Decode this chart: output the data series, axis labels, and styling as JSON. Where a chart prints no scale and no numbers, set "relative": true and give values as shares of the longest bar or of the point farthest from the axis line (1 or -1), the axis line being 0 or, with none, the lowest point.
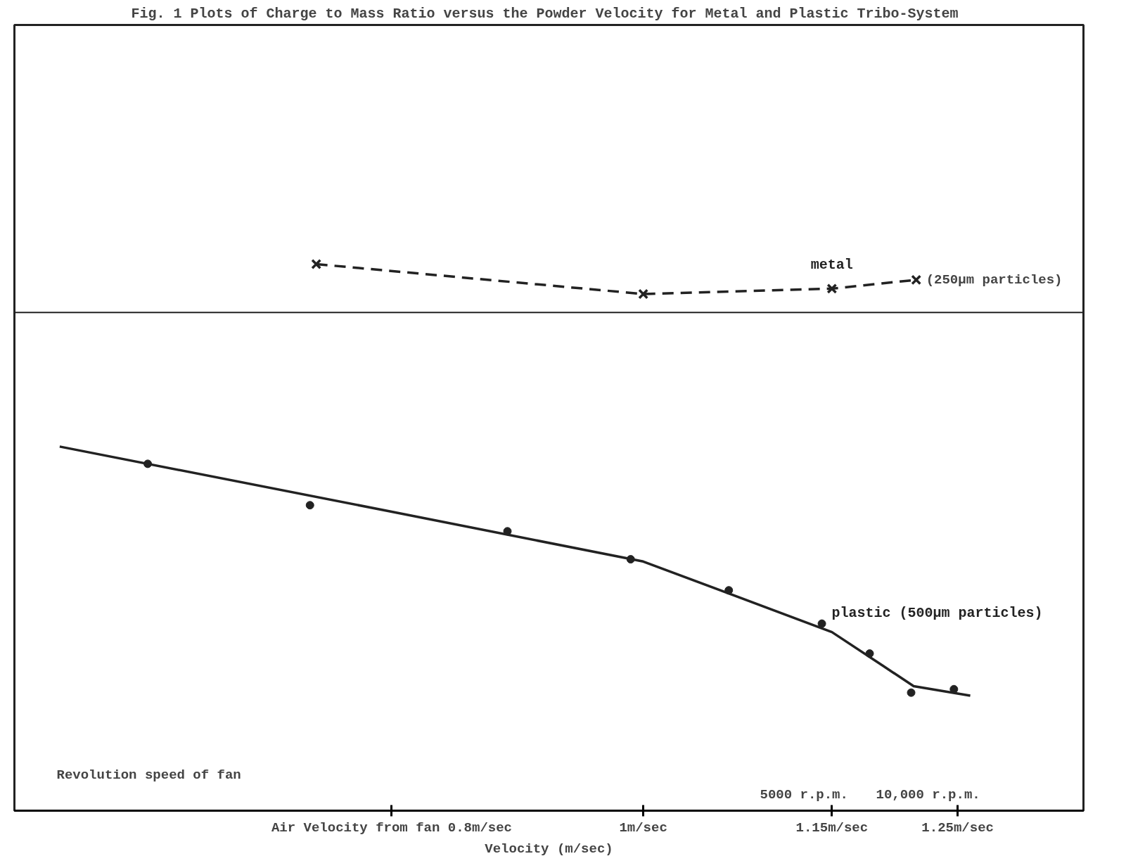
{
  "chart_data": {
    "type": "line",
    "relative": true,
    "title": "Fig. 1  Plots of Charge to Mass Ratio versus the Powder Velocity for Metal and Plastic Tribo-System",
    "xlabel": "Velocity (m/sec)",
    "xlim": [
      0.5,
      1.35
    ],
    "xticks": [
      {
        "value": 0.8,
        "label": "Air Velocity from fan 0.8m/sec"
      },
      {
        "value": 1.0,
        "label": "1m/sec"
      },
      {
        "value": 1.15,
        "label": "1.15m/sec"
      },
      {
        "value": 1.25,
        "label": "1.25m/sec"
      }
    ],
    "grid": false,
    "annotations": [
      "Revolution speed of fan",
      "5000 r.p.m.",
      "10,000 r.p.m.",
      {
        "text": "(250µm particles)",
        "x": 1.217,
        "y": 0.085
      }
    ],
    "series": [
      {
        "name": "metal",
        "color": "#222222",
        "marker": "cross",
        "line_style": "dashed",
        "x": [
          0.74,
          1.0,
          1.15,
          1.217
        ],
        "values": [
          0.126,
          0.048,
          0.062,
          0.085
        ]
      },
      {
        "name": "plastic (500µm particles)",
        "type": "scatter",
        "color": "#222222",
        "marker": "circle",
        "x": [
          0.606,
          0.735,
          0.892,
          0.99,
          1.068,
          1.142,
          1.18,
          1.213,
          1.247
        ],
        "values": [
          -0.395,
          -0.503,
          -0.571,
          -0.644,
          -0.725,
          -0.812,
          -0.89,
          -0.992,
          -0.983
        ]
      },
      {
        "type": "line",
        "color": "#222222",
        "line_style": "solid",
        "x": [
          0.536,
          0.8,
          1.0,
          1.15,
          1.191,
          1.215,
          1.26
        ],
        "values": [
          -0.35,
          -0.52,
          -0.65,
          -0.834,
          -0.923,
          -0.975,
          -1.0
        ]
      }
    ]
  }
}
